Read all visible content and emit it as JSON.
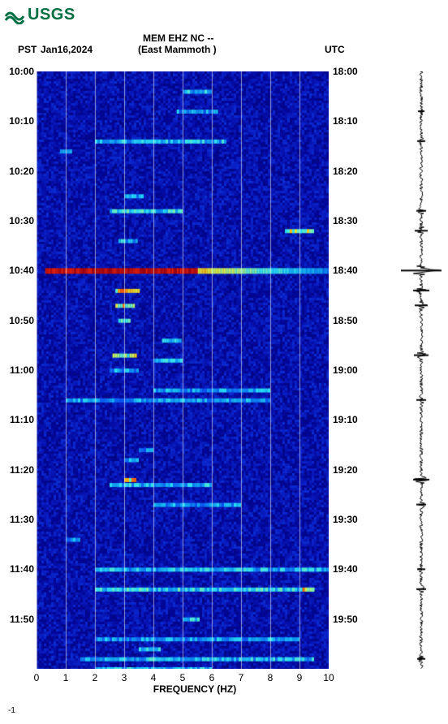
{
  "logo_text": "USGS",
  "header": {
    "station": "MEM EHZ NC --",
    "location": "(East Mammoth )",
    "left_tz": "PST",
    "date": "Jan16,2024",
    "right_tz": "UTC"
  },
  "plot": {
    "bg_color": "#03079a",
    "freq_min": 0,
    "freq_max": 10,
    "freq_ticks": [
      0,
      1,
      2,
      3,
      4,
      5,
      6,
      7,
      8,
      9,
      10
    ],
    "xaxis_title": "FREQUENCY (HZ)",
    "time_min_pst": 600,
    "time_max_pst": 720,
    "pst_ticks": [
      "10:00",
      "10:10",
      "10:20",
      "10:30",
      "10:40",
      "10:50",
      "11:00",
      "11:10",
      "11:20",
      "11:30",
      "11:40",
      "11:50"
    ],
    "utc_ticks": [
      "18:00",
      "18:10",
      "18:20",
      "18:30",
      "18:40",
      "18:50",
      "19:00",
      "19:10",
      "19:20",
      "19:30",
      "19:40",
      "19:50"
    ],
    "palette": [
      "#010570",
      "#03079a",
      "#0a1fc5",
      "#0a4ff0",
      "#0f9bf0",
      "#2adff5",
      "#7af0b0",
      "#e0f040",
      "#f7a000",
      "#f02000",
      "#a00000"
    ],
    "big_event": {
      "pst_min": 640,
      "freq_start": 0.3,
      "freq_end": 10,
      "intensity": 1.0
    },
    "events": [
      {
        "t": 604,
        "f0": 5.0,
        "f1": 6.0,
        "int": 0.55
      },
      {
        "t": 608,
        "f0": 4.8,
        "f1": 6.2,
        "int": 0.5
      },
      {
        "t": 614,
        "f0": 2.0,
        "f1": 6.5,
        "int": 0.55
      },
      {
        "t": 616,
        "f0": 0.8,
        "f1": 1.2,
        "int": 0.45
      },
      {
        "t": 625,
        "f0": 3.0,
        "f1": 3.6,
        "int": 0.5
      },
      {
        "t": 628,
        "f0": 2.5,
        "f1": 5.0,
        "int": 0.6
      },
      {
        "t": 632,
        "f0": 8.5,
        "f1": 9.5,
        "int": 0.8
      },
      {
        "t": 634,
        "f0": 2.8,
        "f1": 3.4,
        "int": 0.55
      },
      {
        "t": 644,
        "f0": 2.7,
        "f1": 3.5,
        "int": 0.9
      },
      {
        "t": 647,
        "f0": 2.7,
        "f1": 3.3,
        "int": 0.85
      },
      {
        "t": 650,
        "f0": 2.8,
        "f1": 3.2,
        "int": 0.6
      },
      {
        "t": 654,
        "f0": 4.3,
        "f1": 4.9,
        "int": 0.55
      },
      {
        "t": 657,
        "f0": 2.6,
        "f1": 3.4,
        "int": 0.8
      },
      {
        "t": 658,
        "f0": 4.0,
        "f1": 5.0,
        "int": 0.55
      },
      {
        "t": 660,
        "f0": 2.5,
        "f1": 3.5,
        "int": 0.5
      },
      {
        "t": 664,
        "f0": 4.0,
        "f1": 8.0,
        "int": 0.5
      },
      {
        "t": 666,
        "f0": 1.0,
        "f1": 8.0,
        "int": 0.5
      },
      {
        "t": 676,
        "f0": 3.5,
        "f1": 4.0,
        "int": 0.45
      },
      {
        "t": 678,
        "f0": 3.0,
        "f1": 3.5,
        "int": 0.5
      },
      {
        "t": 682,
        "f0": 3.0,
        "f1": 3.4,
        "int": 0.85
      },
      {
        "t": 683,
        "f0": 2.5,
        "f1": 6.0,
        "int": 0.55
      },
      {
        "t": 687,
        "f0": 4.0,
        "f1": 7.0,
        "int": 0.5
      },
      {
        "t": 694,
        "f0": 1.0,
        "f1": 1.5,
        "int": 0.5
      },
      {
        "t": 700,
        "f0": 2.0,
        "f1": 10.0,
        "int": 0.55
      },
      {
        "t": 704,
        "f0": 2.0,
        "f1": 9.5,
        "int": 0.6
      },
      {
        "t": 704,
        "f0": 9.1,
        "f1": 9.5,
        "int": 0.85
      },
      {
        "t": 710,
        "f0": 5.0,
        "f1": 5.5,
        "int": 0.55
      },
      {
        "t": 714,
        "f0": 2.0,
        "f1": 9.0,
        "int": 0.5
      },
      {
        "t": 716,
        "f0": 3.5,
        "f1": 4.2,
        "int": 0.55
      },
      {
        "t": 718,
        "f0": 1.5,
        "f1": 9.5,
        "int": 0.55
      },
      {
        "t": 720,
        "f0": 2.0,
        "f1": 6.0,
        "int": 0.55
      }
    ]
  },
  "seismogram": {
    "color": "#000000",
    "baseline_amp": 2,
    "spikes": [
      {
        "t": 608,
        "amp": 4
      },
      {
        "t": 614,
        "amp": 5
      },
      {
        "t": 628,
        "amp": 6
      },
      {
        "t": 632,
        "amp": 8
      },
      {
        "t": 640,
        "amp": 25
      },
      {
        "t": 644,
        "amp": 10
      },
      {
        "t": 647,
        "amp": 8
      },
      {
        "t": 657,
        "amp": 9
      },
      {
        "t": 666,
        "amp": 6
      },
      {
        "t": 682,
        "amp": 10
      },
      {
        "t": 687,
        "amp": 6
      },
      {
        "t": 700,
        "amp": 5
      },
      {
        "t": 704,
        "amp": 6
      },
      {
        "t": 718,
        "amp": 5
      }
    ]
  },
  "footer_mark": "-1"
}
